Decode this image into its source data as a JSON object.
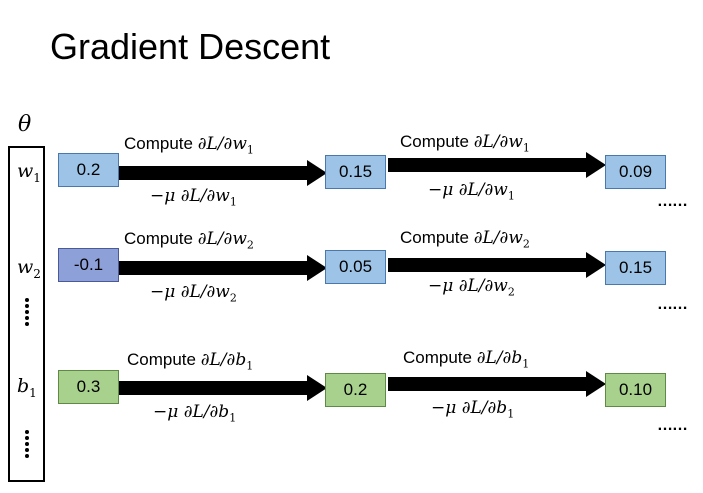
{
  "title": "Gradient Descent",
  "params_symbol": "θ",
  "params": [
    {
      "base": "w",
      "sub": "1"
    },
    {
      "base": "w",
      "sub": "2"
    },
    {
      "base": "b",
      "sub": "1"
    }
  ],
  "rows": [
    {
      "color": "#9dc3e6",
      "values": [
        "0.2",
        "0.15",
        "0.09"
      ],
      "compute_prefix": "Compute ",
      "grad_num": "∂L/∂",
      "var": "w",
      "sub": "1",
      "update_prefix": "−μ ∂L/∂"
    },
    {
      "color": "#8ea0d8",
      "values": [
        "-0.1",
        "0.05",
        "0.15"
      ],
      "compute_prefix": "Compute ",
      "grad_num": "∂L/∂",
      "var": "w",
      "sub": "2",
      "update_prefix": "−μ ∂L/∂"
    },
    {
      "color": "#a9d18e",
      "values": [
        "0.3",
        "0.2",
        "0.10"
      ],
      "compute_prefix": "Compute ",
      "grad_num": "∂L/∂",
      "var": "b",
      "sub": "1",
      "update_prefix": "−μ ∂L/∂"
    }
  ],
  "continuation": "……"
}
